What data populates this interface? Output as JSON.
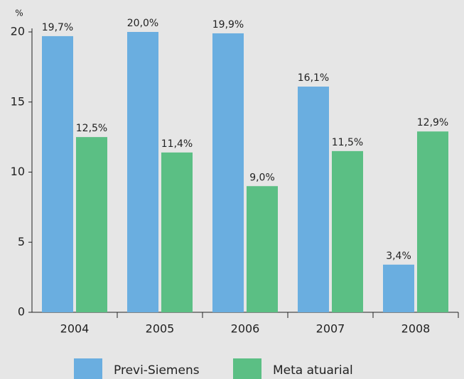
{
  "chart_data": {
    "type": "bar",
    "y_unit_label": "%",
    "categories": [
      "2004",
      "2005",
      "2006",
      "2007",
      "2008"
    ],
    "series": [
      {
        "name": "Previ-Siemens",
        "color": "#6aaee0",
        "values": [
          19.7,
          20.0,
          19.9,
          16.1,
          3.4
        ],
        "value_labels": [
          "19,7%",
          "20,0%",
          "19,9%",
          "16,1%",
          "3,4%"
        ]
      },
      {
        "name": "Meta atuarial",
        "color": "#5bbf84",
        "values": [
          12.5,
          11.4,
          9.0,
          11.5,
          12.9
        ],
        "value_labels": [
          "12,5%",
          "11,4%",
          "9,0%",
          "11,5%",
          "12,9%"
        ]
      }
    ],
    "ylim": [
      0,
      20
    ],
    "yticks": [
      0,
      5,
      10,
      15,
      20
    ],
    "grid": false,
    "legend": "bottom"
  }
}
